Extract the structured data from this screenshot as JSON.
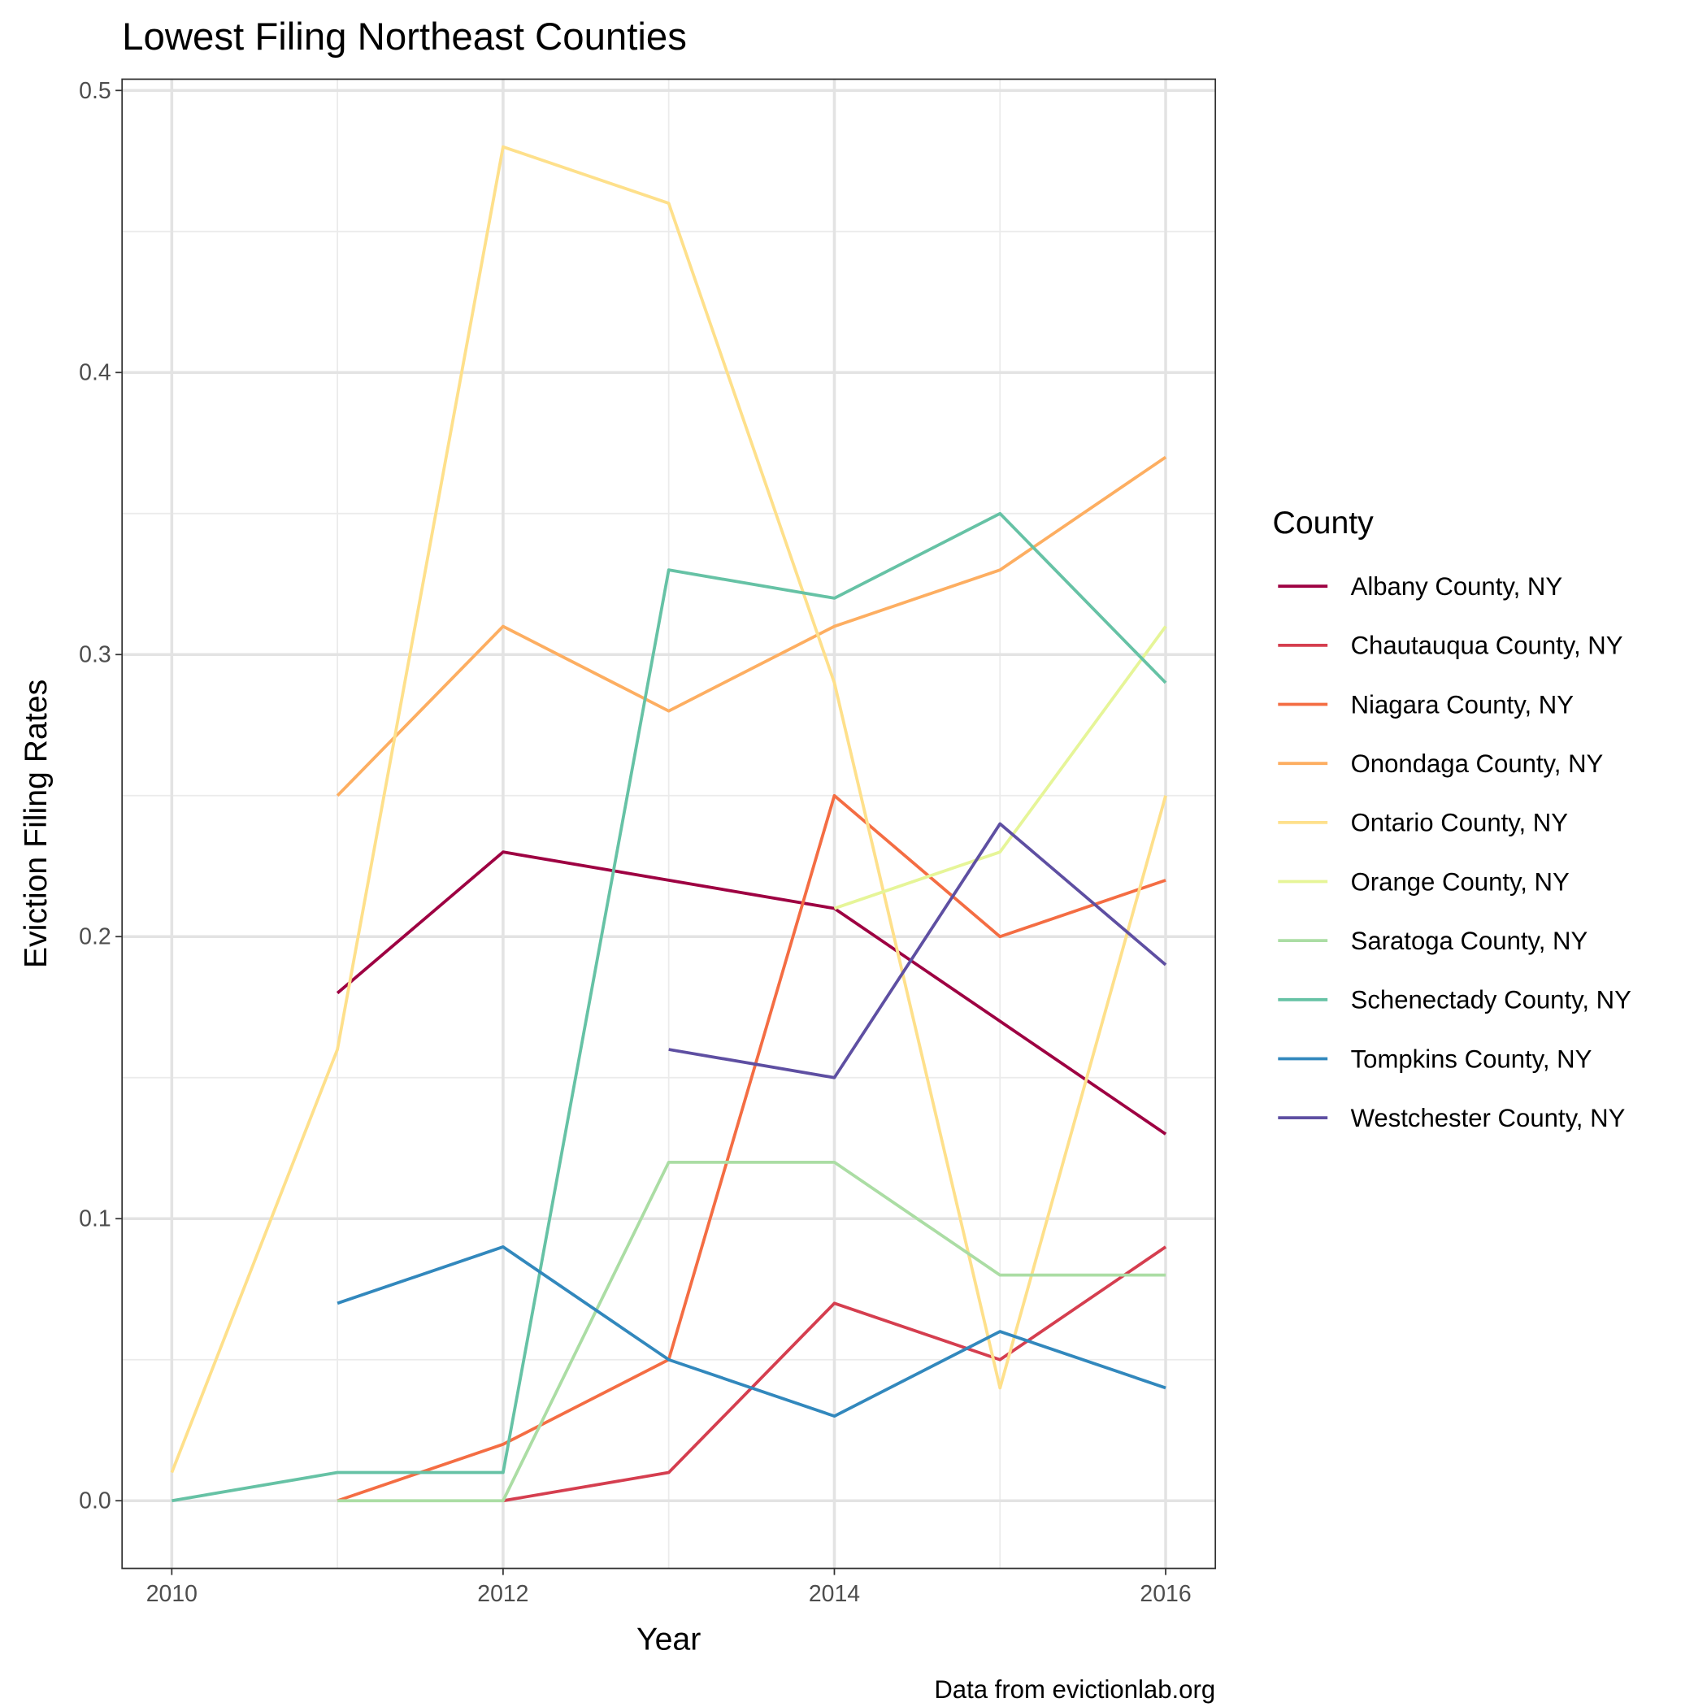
{
  "chart_data": {
    "type": "line",
    "title": "Lowest Filing Northeast Counties",
    "x_label": "Year",
    "y_label": "Eviction Filing Rates",
    "caption": "Data from evictionlab.org",
    "legend_title": "County",
    "legend_position": "right",
    "grid": true,
    "x": [
      2010,
      2011,
      2012,
      2013,
      2014,
      2015,
      2016
    ],
    "xlim": [
      2009.7,
      2016.3
    ],
    "xticks": [
      2010,
      2012,
      2014,
      2016
    ],
    "ylim": [
      -0.024,
      0.504
    ],
    "yticks": [
      {
        "value": 0,
        "label": "0.0"
      },
      0.1,
      0.2,
      0.3,
      0.4,
      0.5
    ],
    "series": [
      {
        "name": "Albany County, NY",
        "color": "#9E0142",
        "values": [
          null,
          0.18,
          0.23,
          0.22,
          0.21,
          0.17,
          0.13
        ]
      },
      {
        "name": "Chautauqua County, NY",
        "color": "#D53E4F",
        "values": [
          null,
          null,
          0,
          0.01,
          0.07,
          0.05,
          0.09
        ]
      },
      {
        "name": "Niagara County, NY",
        "color": "#F46D43",
        "values": [
          null,
          0,
          0.02,
          0.05,
          0.25,
          0.2,
          0.22
        ]
      },
      {
        "name": "Onondaga County, NY",
        "color": "#FDAE61",
        "values": [
          null,
          0.25,
          0.31,
          0.28,
          0.31,
          0.33,
          0.37
        ]
      },
      {
        "name": "Ontario County, NY",
        "color": "#FEE08B",
        "values": [
          0.01,
          0.16,
          0.48,
          0.46,
          0.29,
          0.04,
          0.25
        ]
      },
      {
        "name": "Orange County, NY",
        "color": "#E6F598",
        "values": [
          null,
          null,
          null,
          null,
          0.21,
          0.23,
          0.31
        ]
      },
      {
        "name": "Saratoga County, NY",
        "color": "#ABDDA4",
        "values": [
          null,
          0,
          0,
          0.12,
          0.12,
          0.08,
          0.08
        ]
      },
      {
        "name": "Schenectady County, NY",
        "color": "#66C2A5",
        "values": [
          0,
          0.01,
          0.01,
          0.33,
          0.32,
          0.35,
          0.29
        ]
      },
      {
        "name": "Tompkins County, NY",
        "color": "#3288BD",
        "values": [
          null,
          0.07,
          0.09,
          0.05,
          0.03,
          0.06,
          0.04
        ]
      },
      {
        "name": "Westchester County, NY",
        "color": "#5E4FA2",
        "values": [
          null,
          null,
          null,
          0.16,
          0.15,
          0.24,
          0.19
        ]
      }
    ]
  }
}
